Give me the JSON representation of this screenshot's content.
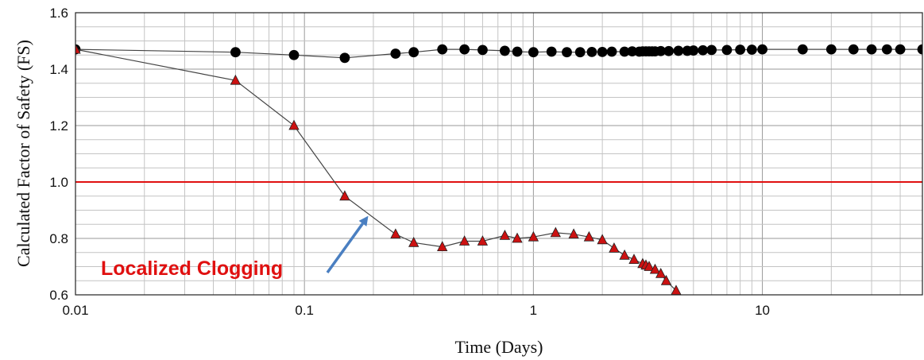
{
  "chart_data": {
    "type": "line",
    "xlabel": "Time (Days)",
    "ylabel": "Calculated Factor of Safety (FS)",
    "x_scale": "log",
    "xlim": [
      0.01,
      50
    ],
    "ylim": [
      0.6,
      1.6
    ],
    "grid": true,
    "x_ticks": [
      {
        "value": 0.01,
        "label": "0.01"
      },
      {
        "value": 0.1,
        "label": "0.1"
      },
      {
        "value": 1,
        "label": "1"
      },
      {
        "value": 10,
        "label": "10"
      }
    ],
    "y_ticks": [
      {
        "value": 0.6,
        "label": "0.6"
      },
      {
        "value": 0.8,
        "label": "0.8"
      },
      {
        "value": 1.0,
        "label": "1.0"
      },
      {
        "value": 1.2,
        "label": "1.2"
      },
      {
        "value": 1.4,
        "label": "1.4"
      },
      {
        "value": 1.6,
        "label": "1.6"
      }
    ],
    "series": [
      {
        "marker": "circle",
        "color": "#000000",
        "x": [
          0.01,
          0.05,
          0.09,
          0.15,
          0.25,
          0.3,
          0.4,
          0.5,
          0.6,
          0.75,
          0.85,
          1.0,
          1.2,
          1.4,
          1.6,
          1.8,
          2.0,
          2.2,
          2.5,
          2.7,
          2.9,
          3.0,
          3.1,
          3.2,
          3.3,
          3.4,
          3.6,
          3.9,
          4.3,
          4.7,
          5.0,
          5.5,
          6.0,
          7.0,
          8.0,
          9.0,
          10,
          15,
          20,
          25,
          30,
          35,
          40,
          50
        ],
        "y": [
          1.47,
          1.46,
          1.45,
          1.44,
          1.455,
          1.46,
          1.47,
          1.47,
          1.468,
          1.465,
          1.462,
          1.46,
          1.462,
          1.46,
          1.46,
          1.461,
          1.461,
          1.462,
          1.462,
          1.463,
          1.462,
          1.463,
          1.463,
          1.463,
          1.463,
          1.463,
          1.464,
          1.464,
          1.465,
          1.465,
          1.466,
          1.467,
          1.468,
          1.468,
          1.469,
          1.469,
          1.47,
          1.47,
          1.47,
          1.47,
          1.47,
          1.47,
          1.47,
          1.47
        ]
      },
      {
        "marker": "triangle",
        "color": "#cc1111",
        "x": [
          0.01,
          0.05,
          0.09,
          0.15,
          0.25,
          0.3,
          0.4,
          0.5,
          0.6,
          0.75,
          0.85,
          1.0,
          1.25,
          1.5,
          1.75,
          2.0,
          2.25,
          2.5,
          2.75,
          3.0,
          3.1,
          3.2,
          3.4,
          3.6,
          3.8,
          4.2
        ],
        "y": [
          1.47,
          1.36,
          1.2,
          0.95,
          0.815,
          0.785,
          0.77,
          0.79,
          0.79,
          0.81,
          0.8,
          0.805,
          0.82,
          0.815,
          0.805,
          0.795,
          0.765,
          0.74,
          0.725,
          0.71,
          0.705,
          0.7,
          0.69,
          0.675,
          0.65,
          0.615
        ]
      }
    ],
    "reference_line": {
      "y": 1.0,
      "color": "#e01010"
    },
    "annotation": {
      "text": "Localized Clogging",
      "color": "#e01010",
      "arrow_color": "#4a7fc1",
      "arrow_target": {
        "x": 0.19,
        "y": 0.88
      }
    }
  }
}
